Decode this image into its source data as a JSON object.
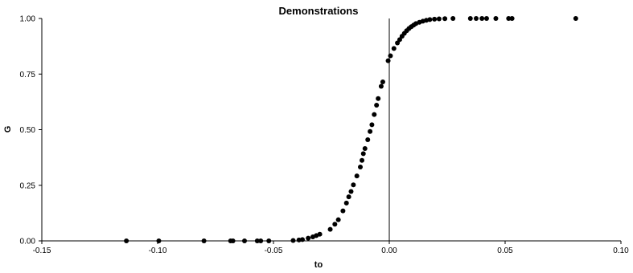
{
  "chart_data": {
    "type": "scatter",
    "title": "Demonstrations",
    "xlabel": "to",
    "ylabel": "G",
    "xlim": [
      -0.15,
      0.1
    ],
    "ylim": [
      0.0,
      1.0
    ],
    "x_ticks": [
      -0.15,
      -0.1,
      -0.05,
      0.0,
      0.05,
      0.1
    ],
    "x_tick_labels": [
      "-0.15",
      "-0.10",
      "-0.05",
      "0.00",
      "0.05",
      "0.10"
    ],
    "y_ticks": [
      0.0,
      0.25,
      0.5,
      0.75,
      1.0
    ],
    "y_tick_labels": [
      "0.00",
      "0.25",
      "0.50",
      "0.75",
      "1.00"
    ],
    "grid": false,
    "reference_lines": [
      {
        "axis": "x",
        "value": 0.0
      }
    ],
    "marker_color": "#000000",
    "series": [
      {
        "points": [
          [
            -0.1135,
            0.0
          ],
          [
            -0.0995,
            0.0
          ],
          [
            -0.08,
            0.0
          ],
          [
            -0.0685,
            0.0
          ],
          [
            -0.0675,
            0.0
          ],
          [
            -0.0625,
            0.0
          ],
          [
            -0.057,
            0.0
          ],
          [
            -0.0555,
            0.0
          ],
          [
            -0.052,
            0.0
          ],
          [
            -0.0415,
            0.002
          ],
          [
            -0.039,
            0.004
          ],
          [
            -0.0375,
            0.006
          ],
          [
            -0.035,
            0.012
          ],
          [
            -0.033,
            0.018
          ],
          [
            -0.0315,
            0.024
          ],
          [
            -0.03,
            0.03
          ],
          [
            -0.0255,
            0.052
          ],
          [
            -0.0235,
            0.075
          ],
          [
            -0.022,
            0.095
          ],
          [
            -0.02,
            0.135
          ],
          [
            -0.0185,
            0.17
          ],
          [
            -0.0175,
            0.198
          ],
          [
            -0.0165,
            0.222
          ],
          [
            -0.0155,
            0.252
          ],
          [
            -0.014,
            0.292
          ],
          [
            -0.0125,
            0.332
          ],
          [
            -0.0118,
            0.362
          ],
          [
            -0.0112,
            0.392
          ],
          [
            -0.0105,
            0.415
          ],
          [
            -0.0093,
            0.455
          ],
          [
            -0.0083,
            0.492
          ],
          [
            -0.0075,
            0.522
          ],
          [
            -0.0065,
            0.568
          ],
          [
            -0.0055,
            0.61
          ],
          [
            -0.0048,
            0.64
          ],
          [
            -0.0035,
            0.695
          ],
          [
            -0.0028,
            0.715
          ],
          [
            -0.0005,
            0.81
          ],
          [
            0.0005,
            0.832
          ],
          [
            0.002,
            0.865
          ],
          [
            0.0035,
            0.89
          ],
          [
            0.0045,
            0.905
          ],
          [
            0.0055,
            0.92
          ],
          [
            0.0065,
            0.933
          ],
          [
            0.0075,
            0.945
          ],
          [
            0.0085,
            0.955
          ],
          [
            0.0095,
            0.963
          ],
          [
            0.0105,
            0.97
          ],
          [
            0.0115,
            0.977
          ],
          [
            0.013,
            0.983
          ],
          [
            0.0145,
            0.988
          ],
          [
            0.016,
            0.992
          ],
          [
            0.0175,
            0.995
          ],
          [
            0.0195,
            0.997
          ],
          [
            0.0215,
            0.998
          ],
          [
            0.024,
            0.999
          ],
          [
            0.0275,
            1.0
          ],
          [
            0.035,
            1.0
          ],
          [
            0.0375,
            1.0
          ],
          [
            0.04,
            1.0
          ],
          [
            0.042,
            1.0
          ],
          [
            0.046,
            1.0
          ],
          [
            0.0515,
            1.0
          ],
          [
            0.053,
            1.0
          ],
          [
            0.0805,
            1.0
          ]
        ]
      }
    ]
  }
}
